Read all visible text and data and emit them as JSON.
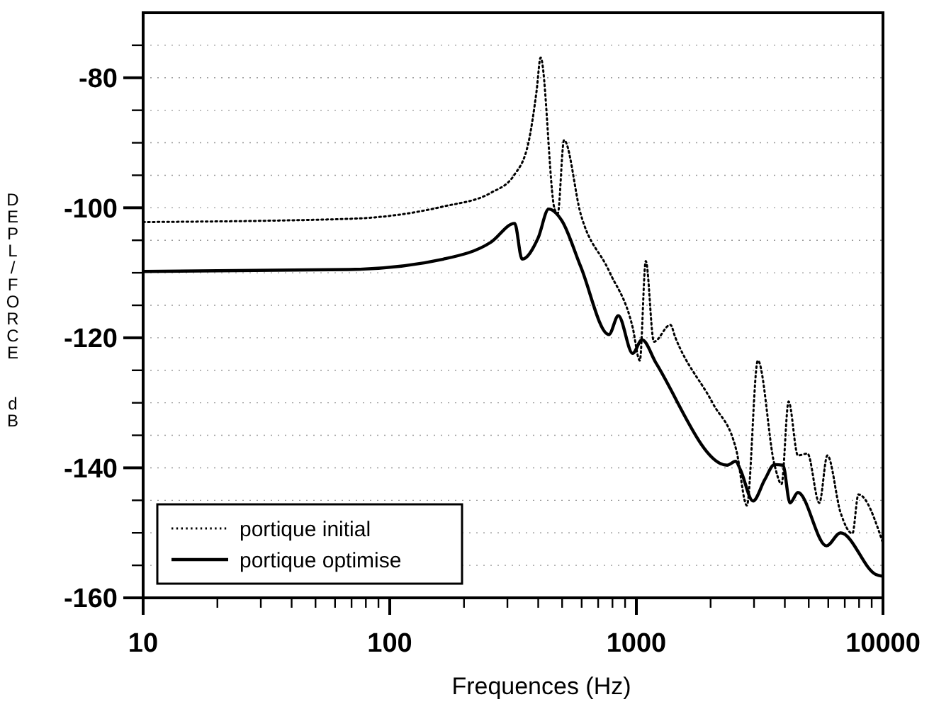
{
  "chart_data": {
    "type": "line",
    "xlabel": "Frequences (Hz)",
    "ylabel": "DEPL/FORCE  dB",
    "log": "x",
    "xlim": [
      10,
      10000
    ],
    "ylim": [
      -160,
      -70
    ],
    "xticks": [
      10,
      {
        "value": 20,
        "label": null
      },
      {
        "value": 30,
        "label": null
      },
      {
        "value": 40,
        "label": null
      },
      {
        "value": 50,
        "label": null
      },
      {
        "value": 60,
        "label": null
      },
      {
        "value": 70,
        "label": null
      },
      {
        "value": 80,
        "label": null
      },
      {
        "value": 90,
        "label": null
      },
      100,
      {
        "value": 200,
        "label": null
      },
      {
        "value": 300,
        "label": null
      },
      {
        "value": 400,
        "label": null
      },
      {
        "value": 500,
        "label": null
      },
      {
        "value": 600,
        "label": null
      },
      {
        "value": 700,
        "label": null
      },
      {
        "value": 800,
        "label": null
      },
      {
        "value": 900,
        "label": null
      },
      1000,
      {
        "value": 2000,
        "label": null
      },
      {
        "value": 3000,
        "label": null
      },
      {
        "value": 4000,
        "label": null
      },
      {
        "value": 5000,
        "label": null
      },
      {
        "value": 6000,
        "label": null
      },
      {
        "value": 7000,
        "label": null
      },
      {
        "value": 8000,
        "label": null
      },
      {
        "value": 9000,
        "label": null
      },
      10000
    ],
    "yticks": [
      -160,
      {
        "value": -155,
        "label": null
      },
      -140,
      {
        "value": -145,
        "label": null
      },
      {
        "value": -150,
        "label": null
      },
      {
        "value": -135,
        "label": null
      },
      -120,
      {
        "value": -125,
        "label": null
      },
      {
        "value": -130,
        "label": null
      },
      {
        "value": -115,
        "label": null
      },
      -100,
      {
        "value": -105,
        "label": null
      },
      {
        "value": -110,
        "label": null
      },
      {
        "value": -95,
        "label": null
      },
      -80,
      {
        "value": -85,
        "label": null
      },
      {
        "value": -90,
        "label": null
      },
      {
        "value": -75,
        "label": null
      }
    ],
    "grid": "y",
    "legend": "bottom left",
    "marker": "none",
    "series": [
      {
        "name": "portique initial",
        "color": "#000000",
        "line_style": "dotted",
        "x": [
          10,
          68.5,
          165,
          257,
          319,
          365,
          394,
          409,
          466,
          480,
          509,
          594,
          774,
          966,
          1033,
          1092,
          1178,
          1374,
          1437,
          2043,
          2547,
          2806,
          3109,
          3630,
          3879,
          4143,
          4520,
          4940,
          5520,
          5950,
          6730,
          7520,
          7950,
          10000
        ],
        "values": [
          -102.2,
          -101.7,
          -99.8,
          -97.7,
          -95,
          -90,
          -82,
          -76.9,
          -100.2,
          -100.9,
          -89.6,
          -100.9,
          -109.7,
          -118.4,
          -123.5,
          -108.2,
          -120.6,
          -118,
          -119.9,
          -130.1,
          -137.4,
          -145.8,
          -123.5,
          -139.5,
          -142.5,
          -129.8,
          -138.1,
          -137.8,
          -145.4,
          -138.1,
          -146.9,
          -150.1,
          -144.1,
          -151.6
        ]
      },
      {
        "name": "portique optimise",
        "color": "#000000",
        "line_style": "solid",
        "x": [
          10,
          68.5,
          165,
          257,
          321,
          344,
          400,
          441,
          499,
          594,
          774,
          845,
          966,
          1054,
          1202,
          2334,
          2528,
          2642,
          2972,
          3319,
          3630,
          3930,
          4198,
          4520,
          5900,
          6730,
          9350,
          10000
        ],
        "values": [
          -109.8,
          -109.5,
          -107.9,
          -105.3,
          -102.4,
          -107.9,
          -104.6,
          -100.2,
          -102,
          -109,
          -119.5,
          -116.6,
          -122.4,
          -120.3,
          -123.9,
          -139.6,
          -139,
          -140.3,
          -145.1,
          -141.8,
          -139.5,
          -139.6,
          -145.4,
          -143.8,
          -152,
          -150,
          -156.4,
          -156.7
        ]
      }
    ]
  }
}
